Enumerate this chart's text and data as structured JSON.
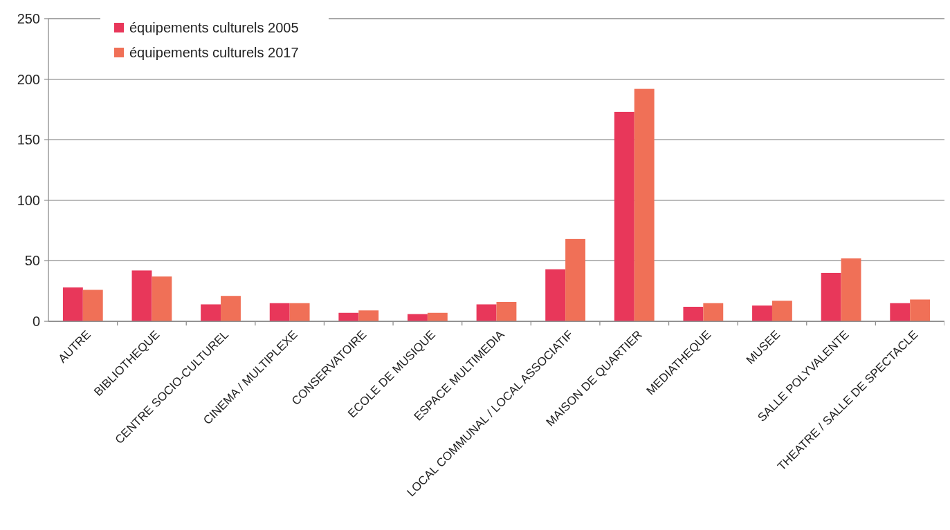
{
  "chart_data": {
    "type": "bar",
    "categories": [
      "AUTRE",
      "BIBLIOTHEQUE",
      "CENTRE SOCIO-CULTUREL",
      "CINEMA / MULTIPLEXE",
      "CONSERVATOIRE",
      "ECOLE DE MUSIQUE",
      "ESPACE MULTIMEDIA",
      "LOCAL COMMUNAL / LOCAL ASSOCIATIF",
      "MAISON DE QUARTIER",
      "MEDIATHEQUE",
      "MUSEE",
      "SALLE POLYVALENTE",
      "THEATRE / SALLE DE SPECTACLE"
    ],
    "series": [
      {
        "name": "équipements culturels 2005",
        "color": "#e8375a",
        "values": [
          28,
          42,
          14,
          15,
          7,
          6,
          14,
          43,
          173,
          12,
          13,
          40,
          15
        ]
      },
      {
        "name": "équipements culturels 2017",
        "color": "#f07057",
        "values": [
          26,
          37,
          21,
          15,
          9,
          7,
          16,
          68,
          192,
          15,
          17,
          52,
          18
        ]
      }
    ],
    "ylim": [
      0,
      250
    ],
    "yticks": [
      0,
      50,
      100,
      150,
      200,
      250
    ],
    "grid": "y",
    "legend": "top left"
  }
}
